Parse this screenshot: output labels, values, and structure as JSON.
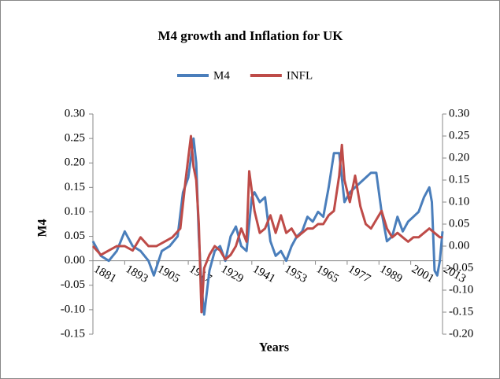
{
  "chart_data": {
    "type": "line",
    "title": "M4 growth and Inflation for UK",
    "xlabel": "Years",
    "ylabel": "M4",
    "xlim": [
      1881,
      2013
    ],
    "xticks": [
      1881,
      1893,
      1905,
      1917,
      1929,
      1941,
      1953,
      1965,
      1977,
      1989,
      2001,
      2013
    ],
    "ylim": [
      -0.15,
      0.3
    ],
    "yticks": [
      {
        "value": -0.15,
        "label": "-0.15"
      },
      {
        "value": -0.1,
        "label": "-0.10"
      },
      {
        "value": -0.05,
        "label": "-0.05"
      },
      {
        "value": 0,
        "label": "0.00"
      },
      {
        "value": 0.05,
        "label": "0.05"
      },
      {
        "value": 0.1,
        "label": "0.10"
      },
      {
        "value": 0.15,
        "label": "0.15"
      },
      {
        "value": 0.2,
        "label": "0.20"
      },
      {
        "value": 0.25,
        "label": "0.25"
      },
      {
        "value": 0.3,
        "label": "0.30"
      }
    ],
    "y2lim": [
      -0.2,
      0.3
    ],
    "y2ticks": [
      {
        "value": -0.2,
        "label": "-0.20"
      },
      {
        "value": -0.15,
        "label": "-0.15"
      },
      {
        "value": -0.1,
        "label": "-0.10"
      },
      {
        "value": -0.05,
        "label": "-0.05"
      },
      {
        "value": 0,
        "label": "0.00"
      },
      {
        "value": 0.05,
        "label": "0.05"
      },
      {
        "value": 0.1,
        "label": "0.10"
      },
      {
        "value": 0.15,
        "label": "0.15"
      },
      {
        "value": 0.2,
        "label": "0.20"
      },
      {
        "value": 0.25,
        "label": "0.25"
      },
      {
        "value": 0.3,
        "label": "0.30"
      }
    ],
    "legend": "top",
    "series": [
      {
        "name": "M4",
        "color": "#4a7ebb",
        "x": [
          1881,
          1884,
          1887,
          1890,
          1893,
          1896,
          1899,
          1902,
          1904,
          1907,
          1910,
          1913,
          1915,
          1917,
          1919,
          1920,
          1921,
          1922,
          1923,
          1925,
          1927,
          1929,
          1931,
          1933,
          1935,
          1937,
          1939,
          1941,
          1942,
          1944,
          1946,
          1948,
          1950,
          1952,
          1954,
          1956,
          1958,
          1960,
          1962,
          1964,
          1966,
          1968,
          1970,
          1972,
          1974,
          1976,
          1978,
          1980,
          1982,
          1984,
          1986,
          1988,
          1990,
          1992,
          1994,
          1996,
          1998,
          2000,
          2002,
          2004,
          2006,
          2008,
          2009,
          2010,
          2011,
          2012,
          2013
        ],
        "values": [
          0.04,
          0.01,
          0.0,
          0.02,
          0.06,
          0.03,
          0.02,
          0.0,
          -0.03,
          0.02,
          0.03,
          0.05,
          0.14,
          0.17,
          0.25,
          0.2,
          0.05,
          -0.05,
          -0.11,
          -0.02,
          0.02,
          0.03,
          0.0,
          0.05,
          0.07,
          0.03,
          0.02,
          0.13,
          0.14,
          0.12,
          0.13,
          0.04,
          0.01,
          0.02,
          0.0,
          0.03,
          0.05,
          0.06,
          0.09,
          0.08,
          0.1,
          0.09,
          0.15,
          0.22,
          0.22,
          0.12,
          0.14,
          0.15,
          0.16,
          0.17,
          0.18,
          0.18,
          0.1,
          0.04,
          0.05,
          0.09,
          0.06,
          0.08,
          0.09,
          0.1,
          0.13,
          0.15,
          0.12,
          -0.02,
          -0.03,
          0.0,
          0.06
        ]
      },
      {
        "name": "INFL",
        "color": "#be4b48",
        "axis": "y2",
        "x": [
          1881,
          1884,
          1887,
          1890,
          1893,
          1896,
          1899,
          1902,
          1905,
          1908,
          1911,
          1914,
          1916,
          1918,
          1919,
          1920,
          1921,
          1922,
          1923,
          1925,
          1927,
          1929,
          1931,
          1933,
          1935,
          1937,
          1939,
          1940,
          1942,
          1944,
          1946,
          1948,
          1950,
          1952,
          1954,
          1956,
          1958,
          1960,
          1962,
          1964,
          1966,
          1968,
          1970,
          1972,
          1974,
          1975,
          1976,
          1978,
          1980,
          1982,
          1984,
          1986,
          1988,
          1990,
          1992,
          1994,
          1996,
          1998,
          2000,
          2002,
          2004,
          2006,
          2008,
          2010,
          2012,
          2013
        ],
        "values": [
          0.0,
          -0.02,
          -0.01,
          0.0,
          0.0,
          -0.01,
          0.02,
          0.0,
          0.0,
          0.01,
          0.02,
          0.04,
          0.15,
          0.25,
          0.18,
          0.15,
          0.05,
          -0.15,
          -0.05,
          -0.02,
          0.0,
          -0.01,
          -0.03,
          -0.02,
          0.0,
          0.04,
          0.01,
          0.17,
          0.08,
          0.03,
          0.04,
          0.07,
          0.03,
          0.07,
          0.03,
          0.04,
          0.02,
          0.03,
          0.04,
          0.04,
          0.05,
          0.05,
          0.07,
          0.08,
          0.16,
          0.23,
          0.15,
          0.1,
          0.16,
          0.09,
          0.05,
          0.04,
          0.06,
          0.08,
          0.04,
          0.02,
          0.03,
          0.02,
          0.01,
          0.02,
          0.02,
          0.03,
          0.04,
          0.03,
          0.02,
          0.02
        ]
      }
    ]
  }
}
